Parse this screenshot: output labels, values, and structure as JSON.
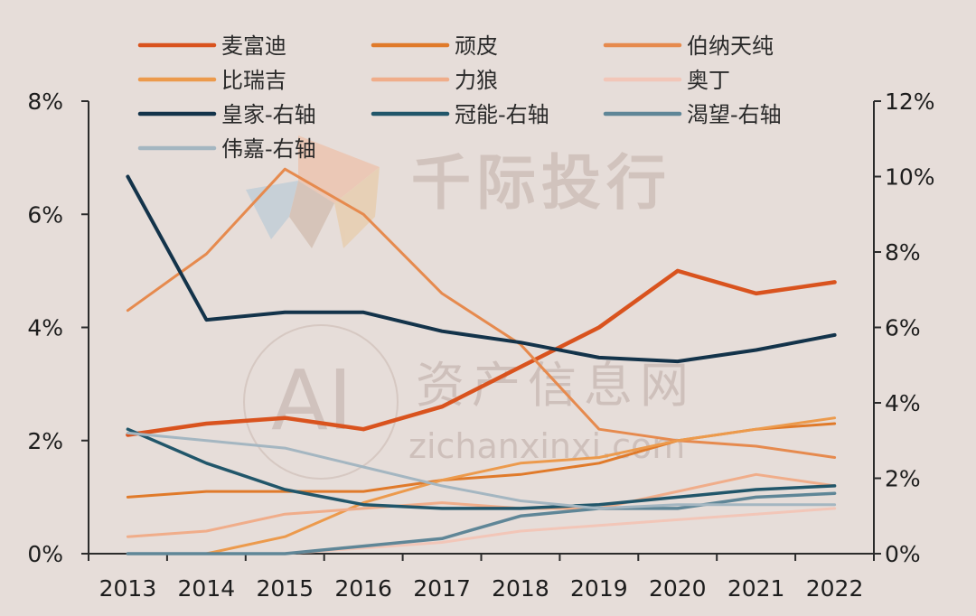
{
  "watermarks": {
    "brand": "千际投行",
    "cn_site": "资产信息网",
    "logo_text": "AI",
    "url": "zichanxinxi.com"
  },
  "chart_data": {
    "type": "line",
    "categories": [
      "2013",
      "2014",
      "2015",
      "2016",
      "2017",
      "2018",
      "2019",
      "2020",
      "2021",
      "2022"
    ],
    "y_left": {
      "ylim": [
        0,
        8
      ],
      "ticks": [
        0,
        2,
        4,
        6,
        8
      ],
      "tick_labels": [
        "0%",
        "2%",
        "4%",
        "6%",
        "8%"
      ]
    },
    "y_right": {
      "ylim": [
        0,
        12
      ],
      "ticks": [
        0,
        2,
        4,
        6,
        8,
        10,
        12
      ],
      "tick_labels": [
        "0%",
        "2%",
        "4%",
        "6%",
        "8%",
        "10%",
        "12%"
      ]
    },
    "series": [
      {
        "name": "麦富迪",
        "axis": "left",
        "color": "#d9531e",
        "width": 4.5,
        "values": [
          2.1,
          2.3,
          2.4,
          2.2,
          2.6,
          3.3,
          4.0,
          5.0,
          4.6,
          4.8
        ]
      },
      {
        "name": "顽皮",
        "axis": "left",
        "color": "#e07a2a",
        "width": 3,
        "values": [
          1.0,
          1.1,
          1.1,
          1.1,
          1.3,
          1.4,
          1.6,
          2.0,
          2.2,
          2.3
        ]
      },
      {
        "name": "伯纳天纯",
        "axis": "left",
        "color": "#e68a4e",
        "width": 3,
        "values": [
          4.3,
          5.3,
          6.8,
          6.0,
          4.6,
          3.7,
          2.2,
          2.0,
          1.9,
          1.7
        ]
      },
      {
        "name": "比瑞吉",
        "axis": "left",
        "color": "#ec9a4c",
        "width": 3,
        "values": [
          0.0,
          0.0,
          0.3,
          0.9,
          1.3,
          1.6,
          1.7,
          2.0,
          2.2,
          2.4
        ]
      },
      {
        "name": "力狼",
        "axis": "left",
        "color": "#f0ad8a",
        "width": 3,
        "values": [
          0.3,
          0.4,
          0.7,
          0.8,
          0.9,
          0.8,
          0.8,
          1.1,
          1.4,
          1.2
        ]
      },
      {
        "name": "奥丁",
        "axis": "left",
        "color": "#f2c6b8",
        "width": 3,
        "values": [
          0.0,
          0.0,
          0.0,
          0.1,
          0.2,
          0.4,
          0.5,
          0.6,
          0.7,
          0.8
        ]
      },
      {
        "name": "皇家-右轴",
        "axis": "right",
        "color": "#13334a",
        "width": 4,
        "values": [
          10.0,
          6.2,
          6.4,
          6.4,
          5.9,
          5.6,
          5.2,
          5.1,
          5.4,
          5.8
        ]
      },
      {
        "name": "冠能-右轴",
        "axis": "right",
        "color": "#21566a",
        "width": 3.5,
        "values": [
          3.3,
          2.4,
          1.7,
          1.3,
          1.2,
          1.2,
          1.3,
          1.5,
          1.7,
          1.8
        ]
      },
      {
        "name": "渴望-右轴",
        "axis": "right",
        "color": "#5f8697",
        "width": 3.5,
        "values": [
          0.0,
          0.0,
          0.0,
          0.2,
          0.4,
          1.0,
          1.2,
          1.2,
          1.5,
          1.6
        ]
      },
      {
        "name": "伟嘉-右轴",
        "axis": "right",
        "color": "#a4b6c1",
        "width": 3,
        "values": [
          3.2,
          3.0,
          2.8,
          2.3,
          1.8,
          1.4,
          1.2,
          1.3,
          1.3,
          1.3
        ]
      }
    ]
  }
}
